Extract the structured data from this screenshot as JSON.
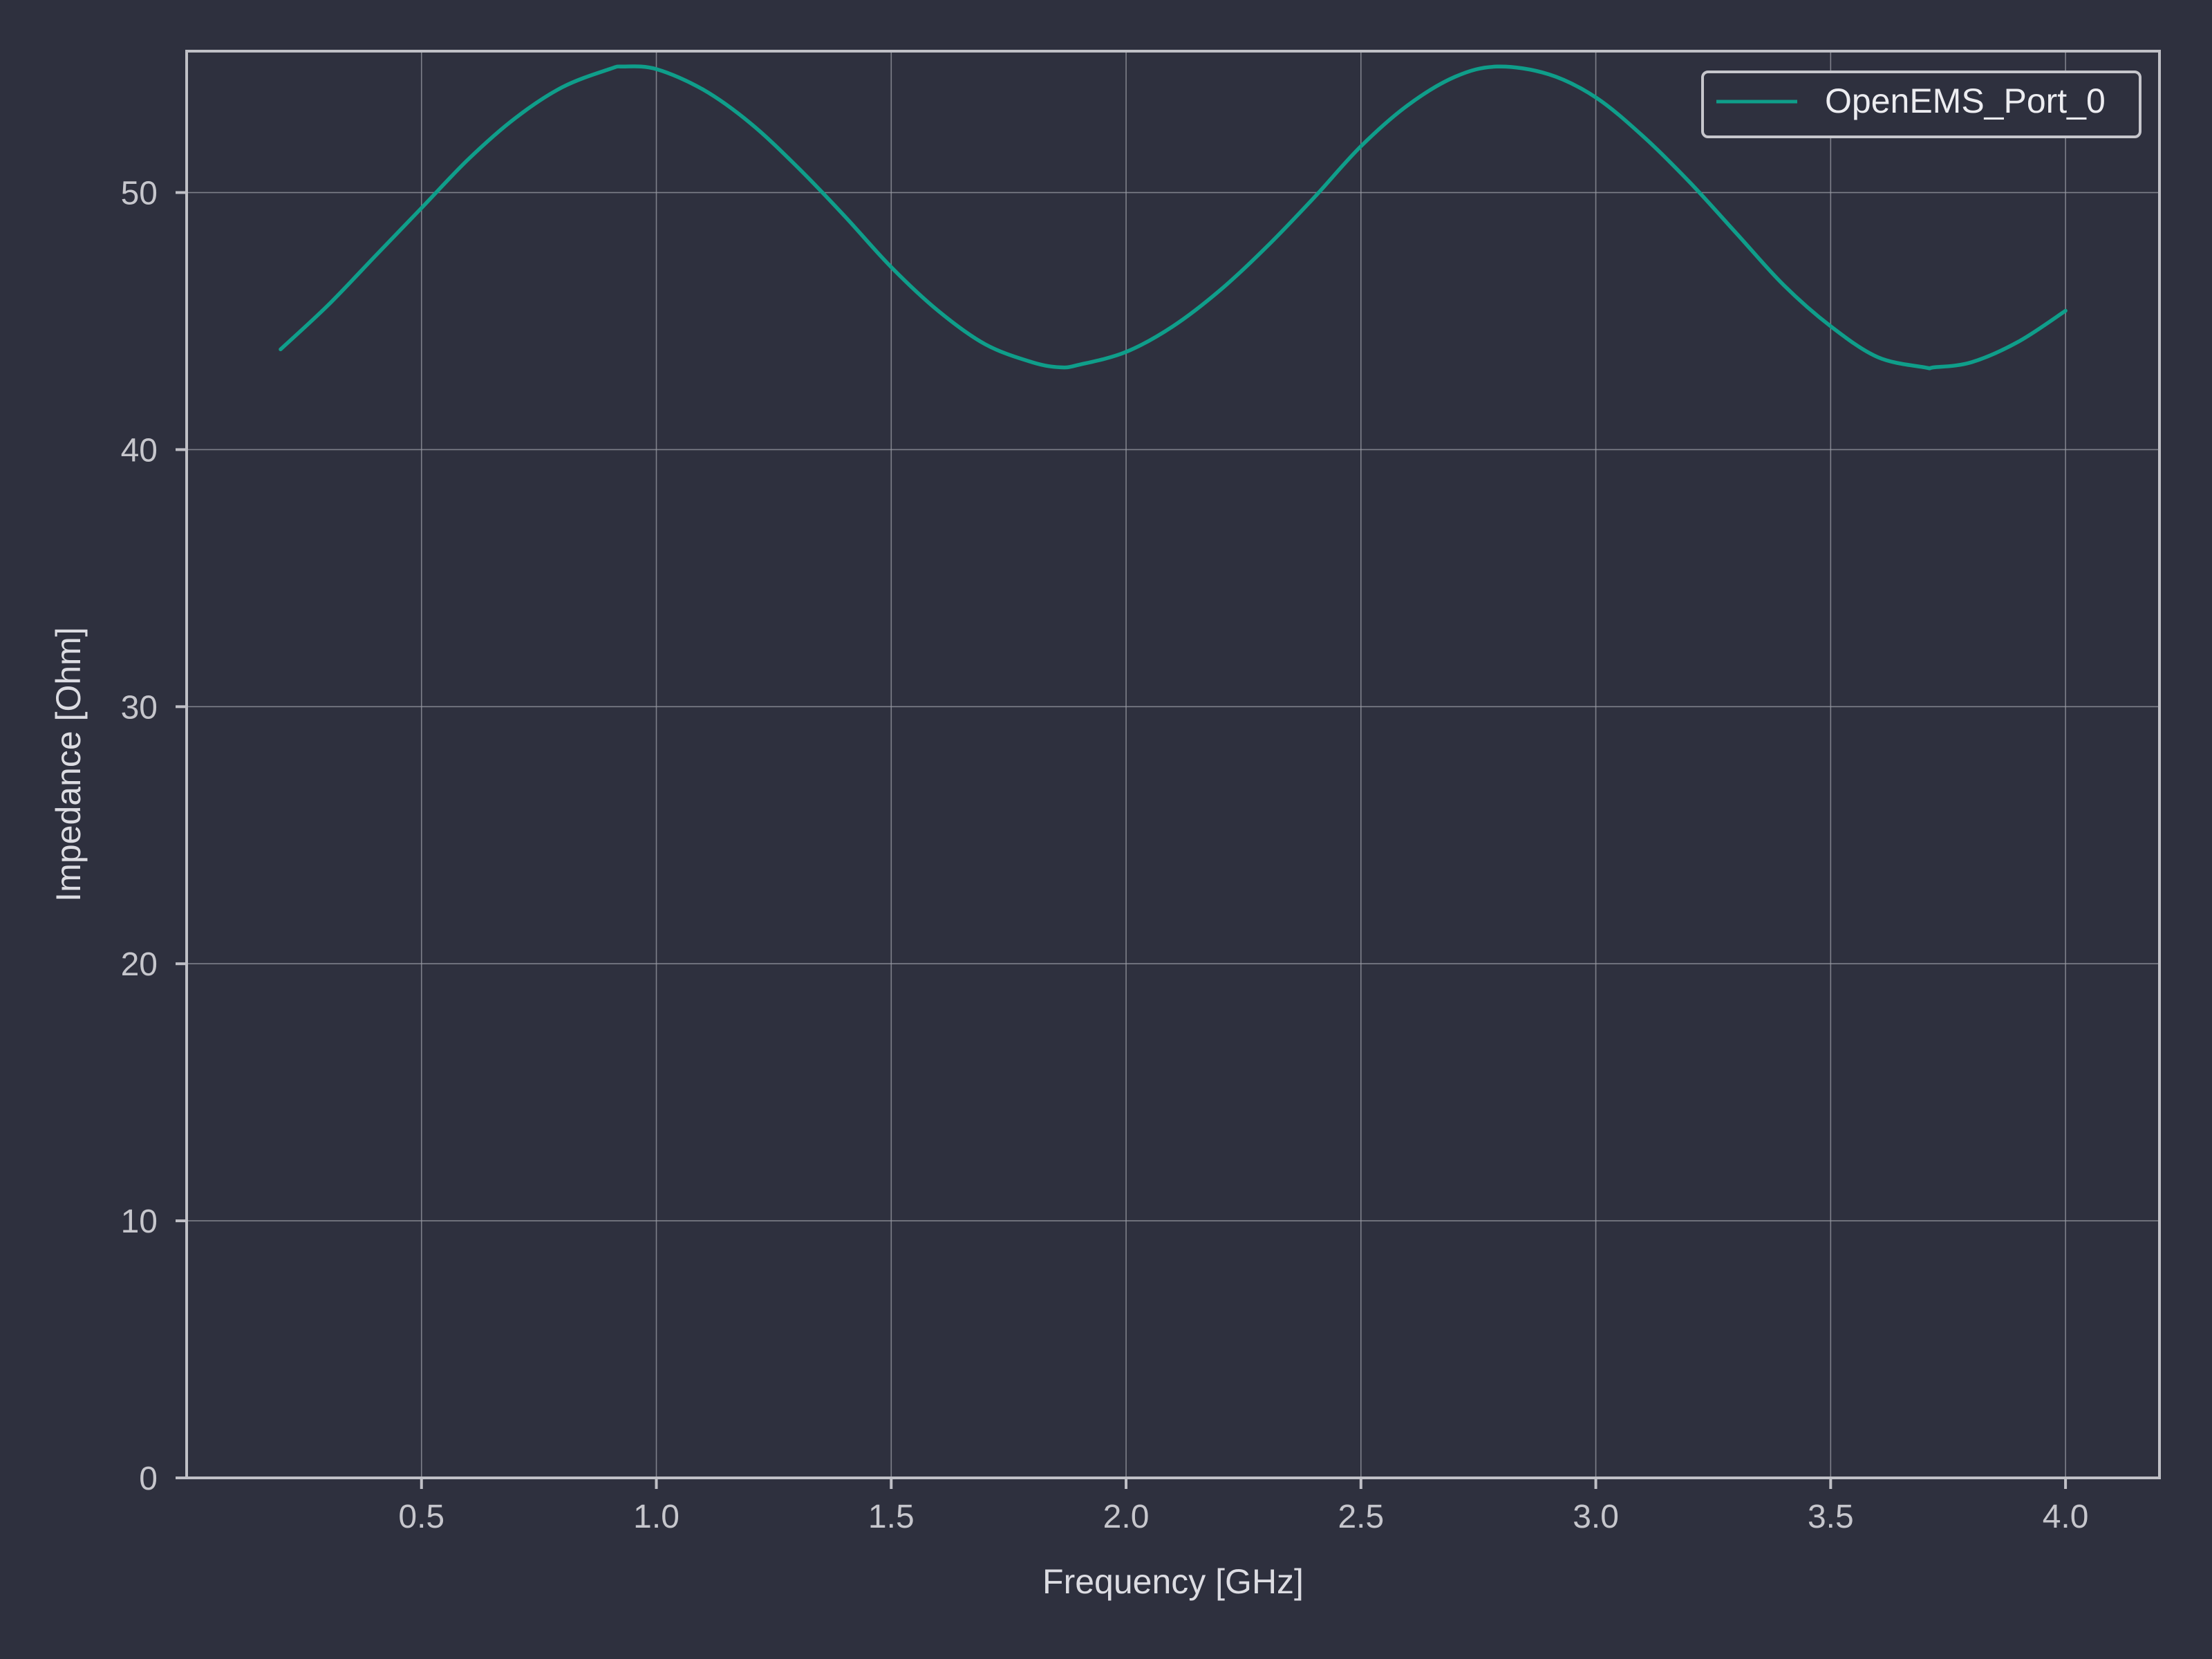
{
  "chart_data": {
    "type": "line",
    "title": "",
    "xlabel": "Frequency [GHz]",
    "ylabel": "Impedance [Ohm]",
    "xlim": [
      0.0,
      4.2
    ],
    "ylim": [
      0,
      55.5
    ],
    "xticks": [
      0.5,
      1.0,
      1.5,
      2.0,
      2.5,
      3.0,
      3.5,
      4.0
    ],
    "xtick_labels": [
      "0.5",
      "1.0",
      "1.5",
      "2.0",
      "2.5",
      "3.0",
      "3.5",
      "4.0"
    ],
    "yticks": [
      0,
      10,
      20,
      30,
      40,
      50
    ],
    "ytick_labels": [
      "0",
      "10",
      "20",
      "30",
      "40",
      "50"
    ],
    "grid": true,
    "legend_position": "top-right",
    "series": [
      {
        "name": "OpenEMS_Port_0",
        "color": "#0f9e8a",
        "x": [
          0.2,
          0.3,
          0.4,
          0.5,
          0.6,
          0.7,
          0.8,
          0.9,
          0.93,
          1.0,
          1.1,
          1.2,
          1.3,
          1.4,
          1.5,
          1.6,
          1.7,
          1.8,
          1.86,
          1.9,
          2.0,
          2.1,
          2.2,
          2.3,
          2.4,
          2.5,
          2.6,
          2.7,
          2.79,
          2.9,
          3.0,
          3.1,
          3.2,
          3.3,
          3.4,
          3.5,
          3.6,
          3.7,
          3.72,
          3.8,
          3.9,
          4.0
        ],
        "y": [
          43.9,
          45.6,
          47.5,
          49.4,
          51.3,
          52.9,
          54.1,
          54.8,
          54.9,
          54.8,
          54.0,
          52.7,
          51.0,
          49.1,
          47.1,
          45.4,
          44.1,
          43.4,
          43.2,
          43.3,
          43.8,
          44.8,
          46.2,
          47.9,
          49.8,
          51.8,
          53.4,
          54.5,
          54.9,
          54.6,
          53.7,
          52.2,
          50.4,
          48.4,
          46.4,
          44.8,
          43.6,
          43.2,
          43.2,
          43.4,
          44.2,
          45.4
        ]
      }
    ]
  }
}
